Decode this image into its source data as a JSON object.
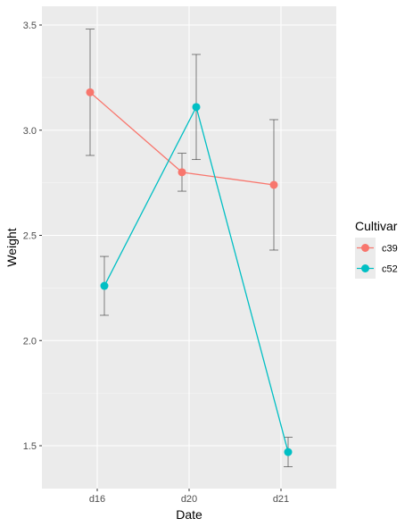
{
  "chart_data": {
    "type": "line",
    "categories": [
      "d16",
      "d20",
      "d21"
    ],
    "xlabel": "Date",
    "ylabel": "Weight",
    "ylim": [
      1.3,
      3.6
    ],
    "yticks": [
      "1.5",
      "2.0",
      "2.5",
      "3.0",
      "3.5"
    ],
    "grid": true,
    "legend": {
      "title": "Cultivar",
      "placement": "right"
    },
    "series": [
      {
        "name": "c39",
        "color": "#F8766D",
        "values": [
          3.18,
          2.8,
          2.74
        ],
        "err_low": [
          2.88,
          2.71,
          2.43
        ],
        "err_high": [
          3.48,
          2.89,
          3.05
        ]
      },
      {
        "name": "c52",
        "color": "#00BFC4",
        "values": [
          2.26,
          3.11,
          1.47
        ],
        "err_low": [
          2.12,
          2.86,
          1.4
        ],
        "err_high": [
          2.4,
          3.36,
          1.54
        ]
      }
    ]
  }
}
